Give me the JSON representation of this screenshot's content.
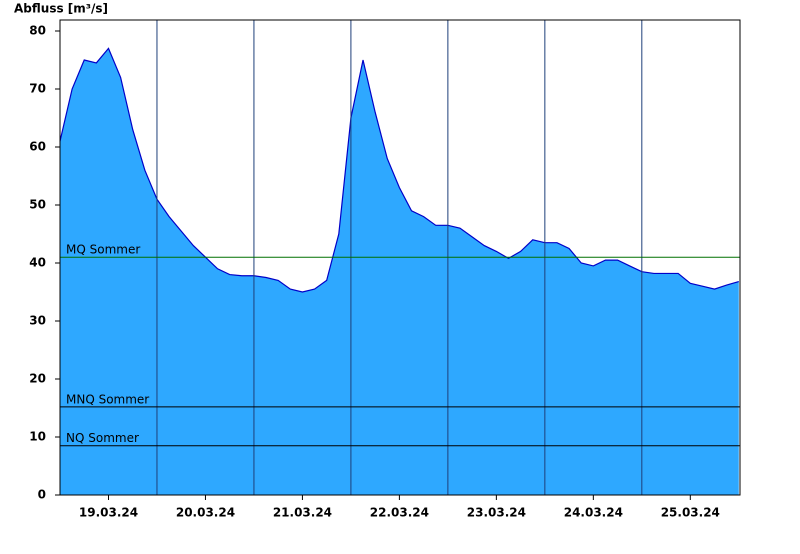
{
  "chart_data": {
    "type": "area",
    "y_label": "Abfluss [m³/s]",
    "x": [
      0,
      3,
      6,
      9,
      12,
      15,
      18,
      21,
      24,
      27,
      30,
      33,
      36,
      39,
      42,
      45,
      48,
      51,
      54,
      57,
      60,
      63,
      66,
      69,
      72,
      75,
      78,
      81,
      84,
      87,
      90,
      93,
      96,
      99,
      102,
      105,
      108,
      111,
      114,
      117,
      120,
      123,
      126,
      129,
      132,
      135,
      138,
      141,
      144,
      147,
      150,
      153,
      156,
      159,
      162,
      165,
      168
    ],
    "series": [
      {
        "name": "Abfluss",
        "color": "#2ea8ff",
        "line_color": "#0000c8",
        "values": [
          61,
          70,
          75,
          74.5,
          77,
          72,
          63,
          56,
          51,
          48,
          45.5,
          43,
          41,
          39,
          38,
          37.8,
          37.8,
          37.5,
          37,
          35.5,
          35,
          35.5,
          37,
          45,
          65,
          75,
          66,
          58,
          53,
          49,
          48,
          46.5,
          46.5,
          46,
          44.5,
          43,
          42,
          40.8,
          42,
          44,
          43.5,
          43.5,
          42.5,
          40,
          39.5,
          40.5,
          40.5,
          39.5,
          38.5,
          38.2,
          38.2,
          38.2,
          36.5,
          36,
          35.5,
          36.2,
          36.8
        ]
      }
    ],
    "reference_lines": [
      {
        "label": "MQ Sommer",
        "value": 41,
        "color": "#007000"
      },
      {
        "label": "MNQ Sommer",
        "value": 15.2,
        "color": "#000000"
      },
      {
        "label": "NQ Sommer",
        "value": 8.5,
        "color": "#000000"
      }
    ],
    "xlim": [
      0,
      168.3
    ],
    "xticks": [
      {
        "value": 12,
        "label": "19.03.24"
      },
      {
        "value": 36,
        "label": "20.03.24"
      },
      {
        "value": 60,
        "label": "21.03.24"
      },
      {
        "value": 84,
        "label": "22.03.24"
      },
      {
        "value": 108,
        "label": "23.03.24"
      },
      {
        "value": 132,
        "label": "24.03.24"
      },
      {
        "value": 156,
        "label": "25.03.24"
      }
    ],
    "xgrid": [
      24,
      48,
      72,
      96,
      120,
      144
    ],
    "ylim": [
      0,
      80
    ],
    "yticks": [
      0,
      10,
      20,
      30,
      40,
      50,
      60,
      70,
      80
    ]
  }
}
